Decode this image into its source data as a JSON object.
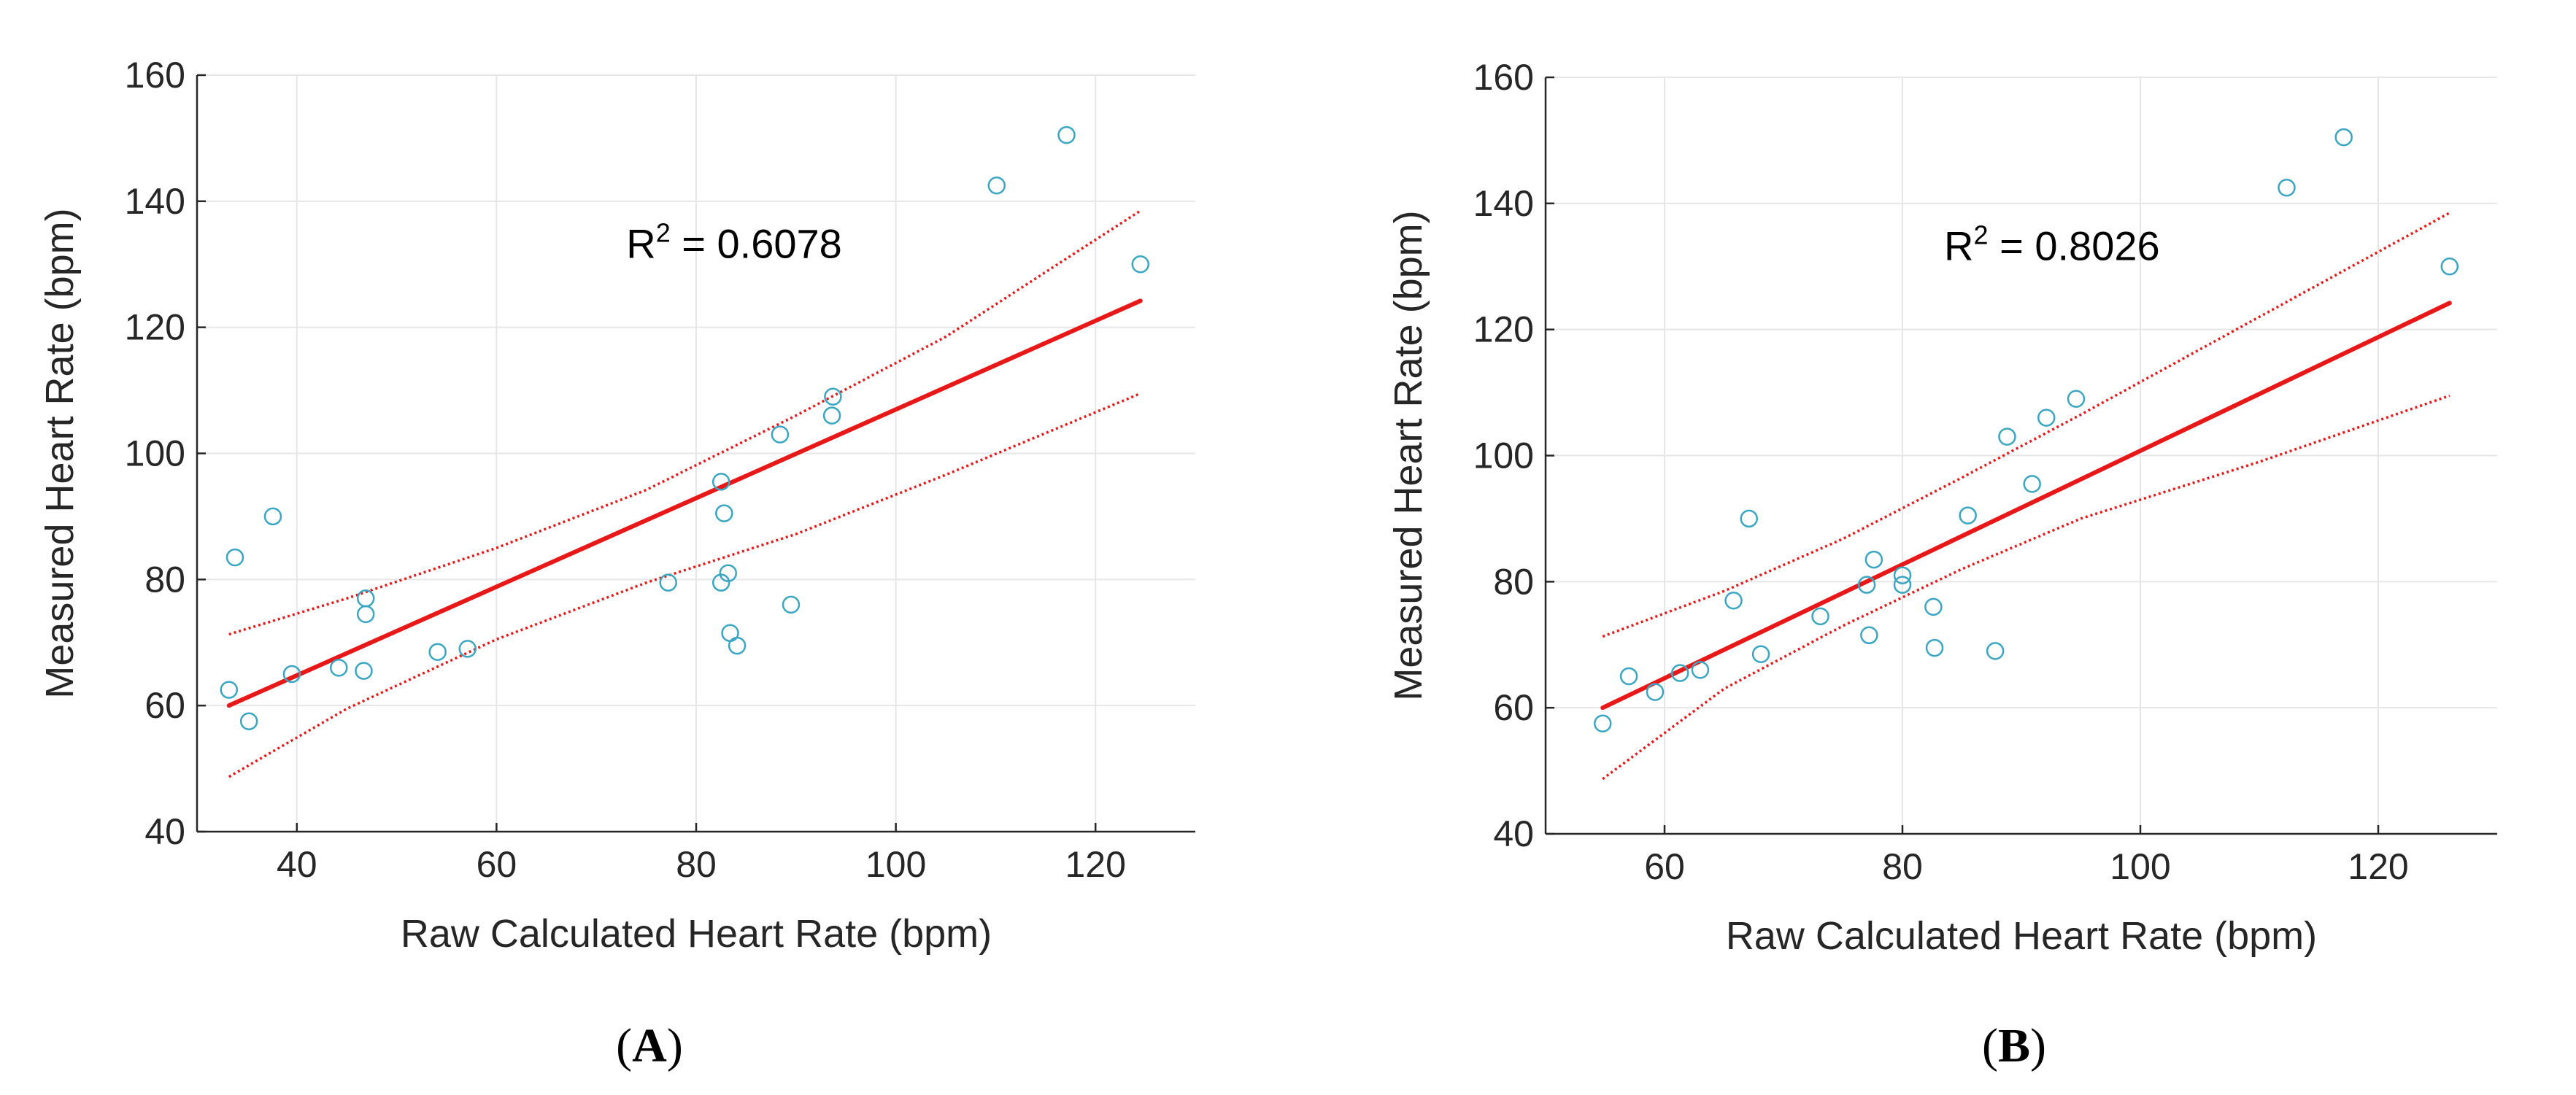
{
  "chart_data": [
    {
      "type": "scatter",
      "panel_label": "A",
      "xlabel": "Raw Calculated Heart Rate (bpm)",
      "ylabel": "Measured Heart Rate (bpm)",
      "xlim": [
        30,
        130
      ],
      "ylim": [
        40,
        160
      ],
      "xticks": [
        40,
        60,
        80,
        100,
        120
      ],
      "yticks": [
        40,
        60,
        80,
        100,
        120,
        140,
        160
      ],
      "grid": true,
      "annotation": {
        "prefix": "R",
        "superscript": "2",
        "suffix": " = 0.6078",
        "x": 73,
        "y": 131
      },
      "points": [
        [
          33.2,
          62.5
        ],
        [
          33.8,
          83.5
        ],
        [
          35.2,
          57.5
        ],
        [
          37.6,
          90.0
        ],
        [
          39.5,
          65.0
        ],
        [
          44.2,
          66.0
        ],
        [
          46.7,
          65.5
        ],
        [
          46.9,
          74.5
        ],
        [
          46.9,
          77.0
        ],
        [
          54.1,
          68.5
        ],
        [
          57.1,
          69.0
        ],
        [
          77.2,
          79.5
        ],
        [
          82.5,
          79.5
        ],
        [
          82.5,
          95.5
        ],
        [
          82.8,
          90.5
        ],
        [
          83.2,
          81.0
        ],
        [
          83.4,
          71.5
        ],
        [
          84.1,
          69.5
        ],
        [
          88.4,
          103.0
        ],
        [
          89.5,
          76.0
        ],
        [
          93.6,
          106.0
        ],
        [
          93.7,
          109.0
        ],
        [
          110.1,
          142.5
        ],
        [
          117.1,
          150.5
        ],
        [
          124.5,
          130.0
        ]
      ],
      "fit_line": {
        "x": [
          33.2,
          124.5
        ],
        "y": [
          60.0,
          124.2
        ]
      },
      "ci_upper": {
        "x": [
          33.2,
          45,
          60,
          75,
          90,
          105,
          124.5
        ],
        "y": [
          71.3,
          77.0,
          85.0,
          94.2,
          106.0,
          118.5,
          138.5
        ]
      },
      "ci_lower": {
        "x": [
          33.2,
          45,
          60,
          75,
          90,
          105,
          124.5
        ],
        "y": [
          48.7,
          59.5,
          70.5,
          79.5,
          87.2,
          96.6,
          109.5
        ]
      }
    },
    {
      "type": "scatter",
      "panel_label": "B",
      "xlabel": "Raw Calculated Heart Rate (bpm)",
      "ylabel": "Measured Heart Rate (bpm)",
      "xlim": [
        50,
        130
      ],
      "ylim": [
        40,
        160
      ],
      "xticks": [
        60,
        80,
        100,
        120
      ],
      "yticks": [
        40,
        60,
        80,
        100,
        120,
        140,
        160
      ],
      "grid": true,
      "annotation": {
        "prefix": "R",
        "superscript": "2",
        "suffix": " = 0.8026",
        "x": 83.5,
        "y": 131
      },
      "points": [
        [
          54.8,
          57.5
        ],
        [
          57.0,
          65.0
        ],
        [
          59.2,
          62.5
        ],
        [
          61.3,
          65.5
        ],
        [
          63.0,
          66.0
        ],
        [
          65.8,
          77.0
        ],
        [
          67.1,
          90.0
        ],
        [
          68.1,
          68.5
        ],
        [
          73.1,
          74.5
        ],
        [
          77.0,
          79.5
        ],
        [
          77.2,
          71.5
        ],
        [
          77.6,
          83.5
        ],
        [
          80.0,
          79.5
        ],
        [
          80.0,
          81.0
        ],
        [
          82.6,
          76.0
        ],
        [
          82.7,
          69.5
        ],
        [
          85.5,
          90.5
        ],
        [
          87.8,
          69.0
        ],
        [
          88.8,
          103.0
        ],
        [
          90.9,
          95.5
        ],
        [
          92.1,
          106.0
        ],
        [
          94.6,
          109.0
        ],
        [
          112.3,
          142.5
        ],
        [
          117.1,
          150.5
        ],
        [
          126.0,
          130.0
        ]
      ],
      "fit_line": {
        "x": [
          54.8,
          126.0
        ],
        "y": [
          60.0,
          124.2
        ]
      },
      "ci_upper": {
        "x": [
          54.8,
          65,
          75,
          85,
          95,
          110,
          126.0
        ],
        "y": [
          71.3,
          78.5,
          86.8,
          96.5,
          106.5,
          122.0,
          138.5
        ]
      },
      "ci_lower": {
        "x": [
          54.8,
          65,
          75,
          85,
          95,
          110,
          126.0
        ],
        "y": [
          48.7,
          63.0,
          73.0,
          82.0,
          90.0,
          99.0,
          109.5
        ]
      }
    }
  ],
  "colors": {
    "scatter": "#3aa6c4",
    "fit": "#e81818",
    "ci": "#e81818",
    "grid": "#e6e6e6",
    "axis": "#262626"
  }
}
